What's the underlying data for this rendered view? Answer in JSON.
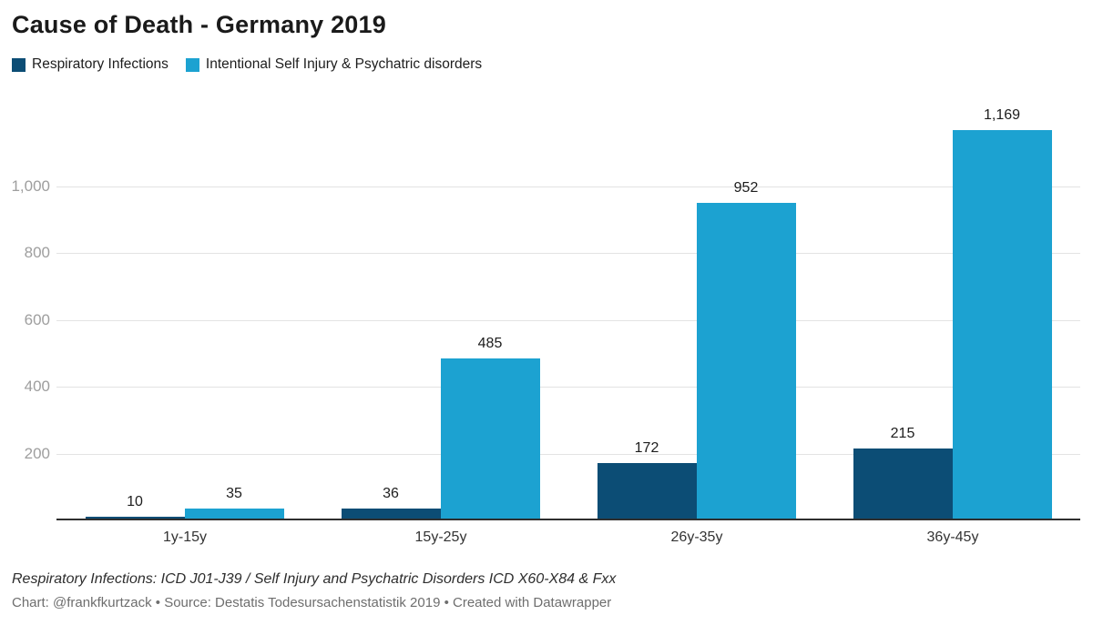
{
  "header": {
    "title": "Cause of Death - Germany 2019"
  },
  "chart_data": {
    "type": "bar",
    "title": "Cause of Death - Germany 2019",
    "categories": [
      "1y-15y",
      "15y-25y",
      "26y-35y",
      "36y-45y"
    ],
    "series": [
      {
        "name": "Respiratory Infections",
        "color": "#0c4d75",
        "values": [
          10,
          36,
          172,
          215
        ]
      },
      {
        "name": "Intentional Self Injury & Psychatric disorders",
        "color": "#1ca2d1",
        "values": [
          35,
          485,
          952,
          1169
        ]
      }
    ],
    "value_labels": [
      [
        "10",
        "36",
        "172",
        "215"
      ],
      [
        "35",
        "485",
        "952",
        "1,169"
      ]
    ],
    "ytick_values": [
      200,
      400,
      600,
      800,
      1000
    ],
    "ytick_labels": [
      "200",
      "400",
      "600",
      "800",
      "1,000"
    ],
    "ylim": [
      0,
      1200
    ],
    "grid": true,
    "legend_position": "top-left",
    "xlabel": "",
    "ylabel": ""
  },
  "footer": {
    "notes": "Respiratory Infections: ICD J01-J39 / Self Injury and Psychatric Disorders ICD X60-X84 & Fxx",
    "byline": "Chart: @frankfkurtzack • Source: Destatis Todesursachenstatistik 2019 • Created with Datawrapper"
  },
  "colors": {
    "background": "#ffffff",
    "grid": "#e3e3e3",
    "axis_line": "#2f2f2f",
    "tick_label": "#9e9e9e",
    "text": "#1d1d1d",
    "byline": "#6e6e6e"
  }
}
